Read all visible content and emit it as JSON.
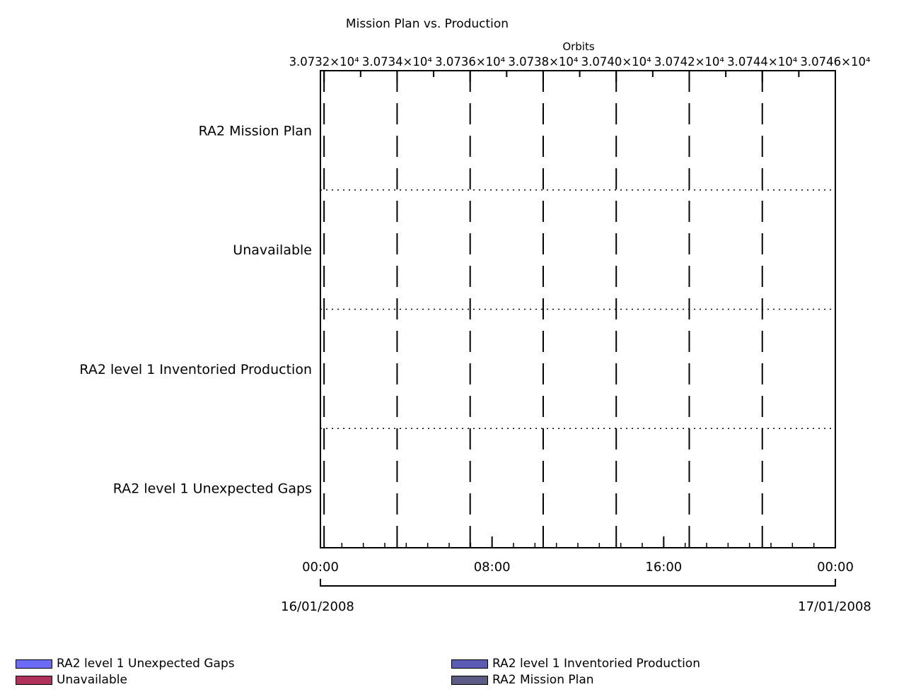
{
  "chart_data": {
    "type": "gantt",
    "title": "Mission Plan vs. Production",
    "top_axis": {
      "label": "Orbits",
      "ticks": [
        {
          "value": 30732,
          "label": "3.0732×10⁴"
        },
        {
          "value": 30734,
          "label": "3.0734×10⁴"
        },
        {
          "value": 30736,
          "label": "3.0736×10⁴"
        },
        {
          "value": 30738,
          "label": "3.0738×10⁴"
        },
        {
          "value": 30740,
          "label": "3.0740×10⁴"
        },
        {
          "value": 30742,
          "label": "3.0742×10⁴"
        },
        {
          "value": 30744,
          "label": "3.0744×10⁴"
        },
        {
          "value": 30746,
          "label": "3.0746×10⁴"
        }
      ],
      "range": [
        30731.9,
        30746.0
      ]
    },
    "bottom_axis": {
      "range_hours": [
        0,
        24
      ],
      "ticks": [
        {
          "hour": 0,
          "label": "00:00"
        },
        {
          "hour": 8,
          "label": "08:00"
        },
        {
          "hour": 16,
          "label": "16:00"
        },
        {
          "hour": 24,
          "label": "00:00"
        }
      ],
      "minor_tick_interval_hours": 1,
      "start_date": "16/01/2008",
      "end_date": "17/01/2008"
    },
    "rows": [
      "RA2 Mission Plan",
      "Unavailable",
      "RA2 level 1 Inventoried Production",
      "RA2 level 1 Unexpected Gaps"
    ],
    "series": [],
    "grid": {
      "vertical": "dashed at orbit ticks",
      "horizontal": "dotted between rows"
    },
    "legend": {
      "placement": "bottom",
      "items": [
        {
          "name": "RA2 level 1 Unexpected Gaps",
          "color": "#6b6bf5"
        },
        {
          "name": "RA2 level 1 Inventoried Production",
          "color": "#5a5ab4"
        },
        {
          "name": "Unavailable",
          "color": "#b0325a"
        },
        {
          "name": "RA2 Mission Plan",
          "color": "#5a5a82"
        }
      ]
    }
  }
}
